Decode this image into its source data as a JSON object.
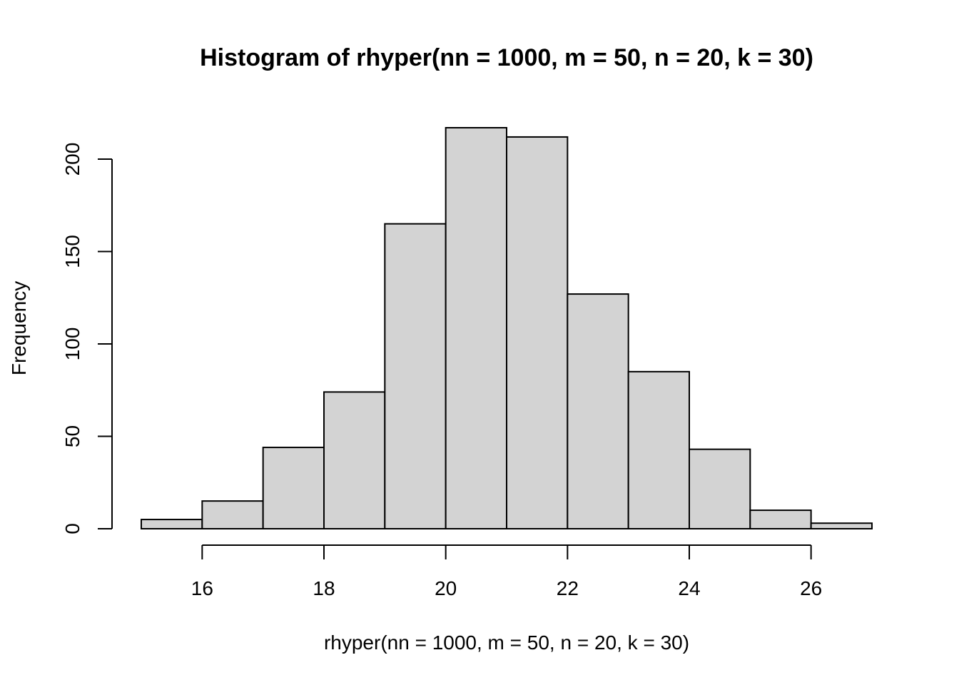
{
  "chart_data": {
    "type": "bar",
    "title": "Histogram of rhyper(nn = 1000, m = 50, n = 20, k = 30)",
    "xlabel": "rhyper(nn = 1000, m = 50, n = 20, k = 30)",
    "ylabel": "Frequency",
    "bins": [
      {
        "start": 15,
        "end": 16,
        "count": 5
      },
      {
        "start": 16,
        "end": 17,
        "count": 15
      },
      {
        "start": 17,
        "end": 18,
        "count": 44
      },
      {
        "start": 18,
        "end": 19,
        "count": 74
      },
      {
        "start": 19,
        "end": 20,
        "count": 165
      },
      {
        "start": 20,
        "end": 21,
        "count": 217
      },
      {
        "start": 21,
        "end": 22,
        "count": 212
      },
      {
        "start": 22,
        "end": 23,
        "count": 127
      },
      {
        "start": 23,
        "end": 24,
        "count": 85
      },
      {
        "start": 24,
        "end": 25,
        "count": 43
      },
      {
        "start": 25,
        "end": 26,
        "count": 10
      },
      {
        "start": 26,
        "end": 27,
        "count": 3
      }
    ],
    "xlim": [
      15,
      27
    ],
    "ylim": [
      0,
      217
    ],
    "xticks": [
      16,
      18,
      20,
      22,
      24,
      26
    ],
    "yticks": [
      0,
      50,
      100,
      150,
      200
    ],
    "bar_fill": "#d3d3d3",
    "bar_stroke": "#000000",
    "grid": false,
    "legend": "none"
  }
}
